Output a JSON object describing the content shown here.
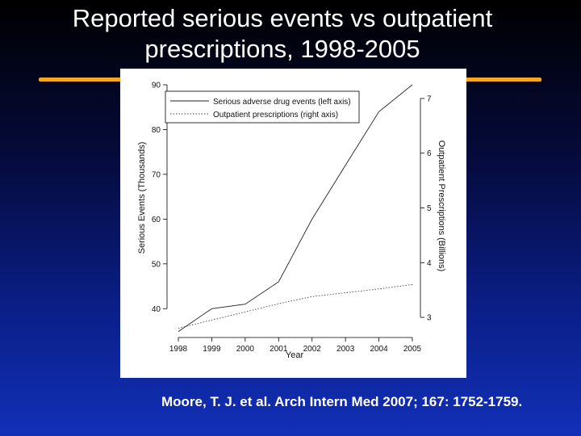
{
  "slide": {
    "title_line1": "Reported serious events vs outpatient",
    "title_line2": "prescriptions, 1998-2005",
    "citation": "Moore, T. J. et al. Arch Intern Med 2007; 167: 1752-1759.",
    "accent_color": "#f5a623"
  },
  "chart_data": {
    "type": "line",
    "xlabel": "Year",
    "ylabel_left": "Serious Events (Thousands)",
    "ylabel_right": "Outpatient Prescriptions (Billions)",
    "x": [
      1998,
      1999,
      2000,
      2001,
      2002,
      2003,
      2004,
      2005
    ],
    "ylim_left": [
      35,
      90
    ],
    "yticks_left": [
      40,
      50,
      60,
      70,
      80,
      90
    ],
    "ylim_right": [
      2.75,
      7.25
    ],
    "yticks_right": [
      3,
      4,
      5,
      6,
      7
    ],
    "legend_position": "top-left",
    "series": [
      {
        "name": "Serious adverse drug events (left axis)",
        "axis": "left",
        "style": "solid",
        "values": [
          34.9,
          40,
          41,
          46,
          60,
          72,
          84,
          90
        ]
      },
      {
        "name": "Outpatient prescriptions (right axis)",
        "axis": "right",
        "style": "dotted",
        "values": [
          2.8,
          2.95,
          3.1,
          3.25,
          3.38,
          3.45,
          3.52,
          3.6
        ]
      }
    ]
  }
}
